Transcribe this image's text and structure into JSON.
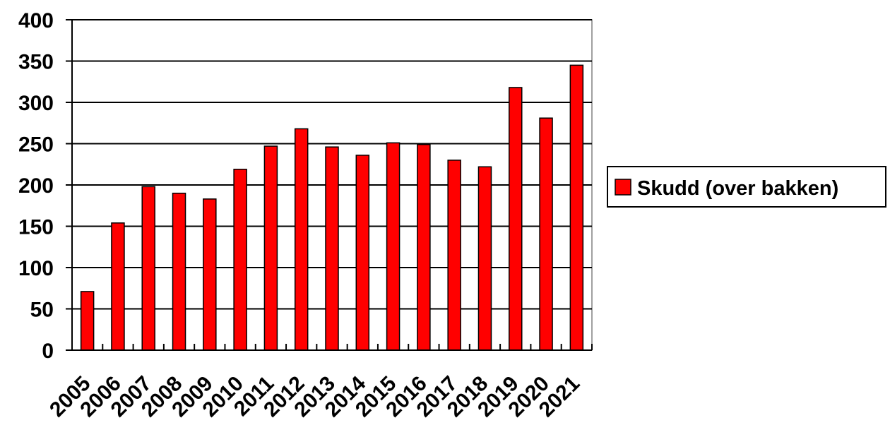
{
  "chart_data": {
    "type": "bar",
    "categories": [
      "2005",
      "2006",
      "2007",
      "2008",
      "2009",
      "2010",
      "2011",
      "2012",
      "2013",
      "2014",
      "2015",
      "2016",
      "2017",
      "2018",
      "2019",
      "2020",
      "2021"
    ],
    "series": [
      {
        "name": "Skudd (over bakken)",
        "color": "#ff0000",
        "values": [
          71,
          154,
          198,
          190,
          183,
          219,
          247,
          268,
          246,
          236,
          251,
          249,
          230,
          222,
          318,
          281,
          345
        ]
      }
    ],
    "y_ticks": [
      0,
      50,
      100,
      150,
      200,
      250,
      300,
      350,
      400
    ],
    "ylim": [
      0,
      400
    ],
    "grid": "horizontal",
    "legend_position": "right",
    "title": "",
    "xlabel": "",
    "ylabel": ""
  }
}
